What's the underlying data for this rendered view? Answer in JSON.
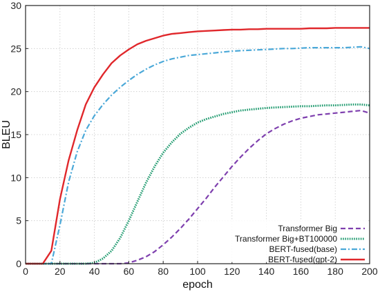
{
  "chart_data": {
    "type": "line",
    "title": "",
    "xlabel": "epoch",
    "ylabel": "BLEU",
    "xlim": [
      0,
      200
    ],
    "ylim": [
      0,
      30
    ],
    "xticks": [
      0,
      20,
      40,
      60,
      80,
      100,
      120,
      140,
      160,
      180,
      200
    ],
    "yticks": [
      0,
      5,
      10,
      15,
      20,
      25,
      30
    ],
    "grid": true,
    "legend_position": "bottom-right",
    "x": [
      0,
      5,
      10,
      15,
      20,
      25,
      30,
      35,
      40,
      45,
      50,
      55,
      60,
      65,
      70,
      75,
      80,
      85,
      90,
      95,
      100,
      105,
      110,
      115,
      120,
      125,
      130,
      135,
      140,
      145,
      150,
      155,
      160,
      165,
      170,
      175,
      180,
      185,
      190,
      195,
      200
    ],
    "series": [
      {
        "name": "Transformer Big",
        "color": "#7e3fae",
        "style": "dashed",
        "values": [
          0,
          0,
          0,
          0,
          0,
          0,
          0,
          0,
          0,
          0,
          0,
          0,
          0.1,
          0.4,
          0.8,
          1.4,
          2.2,
          3.1,
          4.1,
          5.2,
          6.4,
          7.6,
          8.9,
          10.1,
          11.3,
          12.4,
          13.4,
          14.3,
          15.1,
          15.7,
          16.2,
          16.6,
          16.9,
          17.1,
          17.3,
          17.4,
          17.5,
          17.6,
          17.7,
          17.8,
          17.5
        ]
      },
      {
        "name": "Transformer Big+BT100000",
        "color": "#1e9a6e",
        "style": "dotted",
        "values": [
          0,
          0,
          0,
          0,
          0,
          0,
          0,
          0,
          0.1,
          0.6,
          1.5,
          3.0,
          5.0,
          7.2,
          9.4,
          11.3,
          12.9,
          14.1,
          15.1,
          15.8,
          16.4,
          16.8,
          17.1,
          17.4,
          17.6,
          17.8,
          17.9,
          18.0,
          18.1,
          18.15,
          18.2,
          18.25,
          18.3,
          18.3,
          18.35,
          18.4,
          18.4,
          18.45,
          18.5,
          18.5,
          18.4
        ]
      },
      {
        "name": "BERT-fused(base)",
        "color": "#4aa8d8",
        "style": "dashdot",
        "values": [
          0,
          0,
          0,
          0,
          4.5,
          9.5,
          13.0,
          15.5,
          17.2,
          18.5,
          19.6,
          20.5,
          21.3,
          22.0,
          22.6,
          23.1,
          23.5,
          23.8,
          24.0,
          24.2,
          24.3,
          24.4,
          24.5,
          24.6,
          24.7,
          24.75,
          24.8,
          24.85,
          24.9,
          24.95,
          25.0,
          25.0,
          25.05,
          25.1,
          25.1,
          25.1,
          25.1,
          25.1,
          25.15,
          25.2,
          25.0
        ]
      },
      {
        "name": "BERT-fused(gpt-2)",
        "color": "#e0272b",
        "style": "solid",
        "values": [
          0,
          0,
          0,
          1.5,
          7.5,
          12.0,
          15.5,
          18.5,
          20.5,
          22.0,
          23.3,
          24.2,
          24.9,
          25.5,
          25.9,
          26.2,
          26.5,
          26.7,
          26.8,
          26.9,
          27.0,
          27.05,
          27.1,
          27.15,
          27.2,
          27.2,
          27.25,
          27.25,
          27.3,
          27.3,
          27.3,
          27.3,
          27.3,
          27.35,
          27.35,
          27.35,
          27.4,
          27.4,
          27.4,
          27.4,
          27.4
        ]
      }
    ]
  }
}
